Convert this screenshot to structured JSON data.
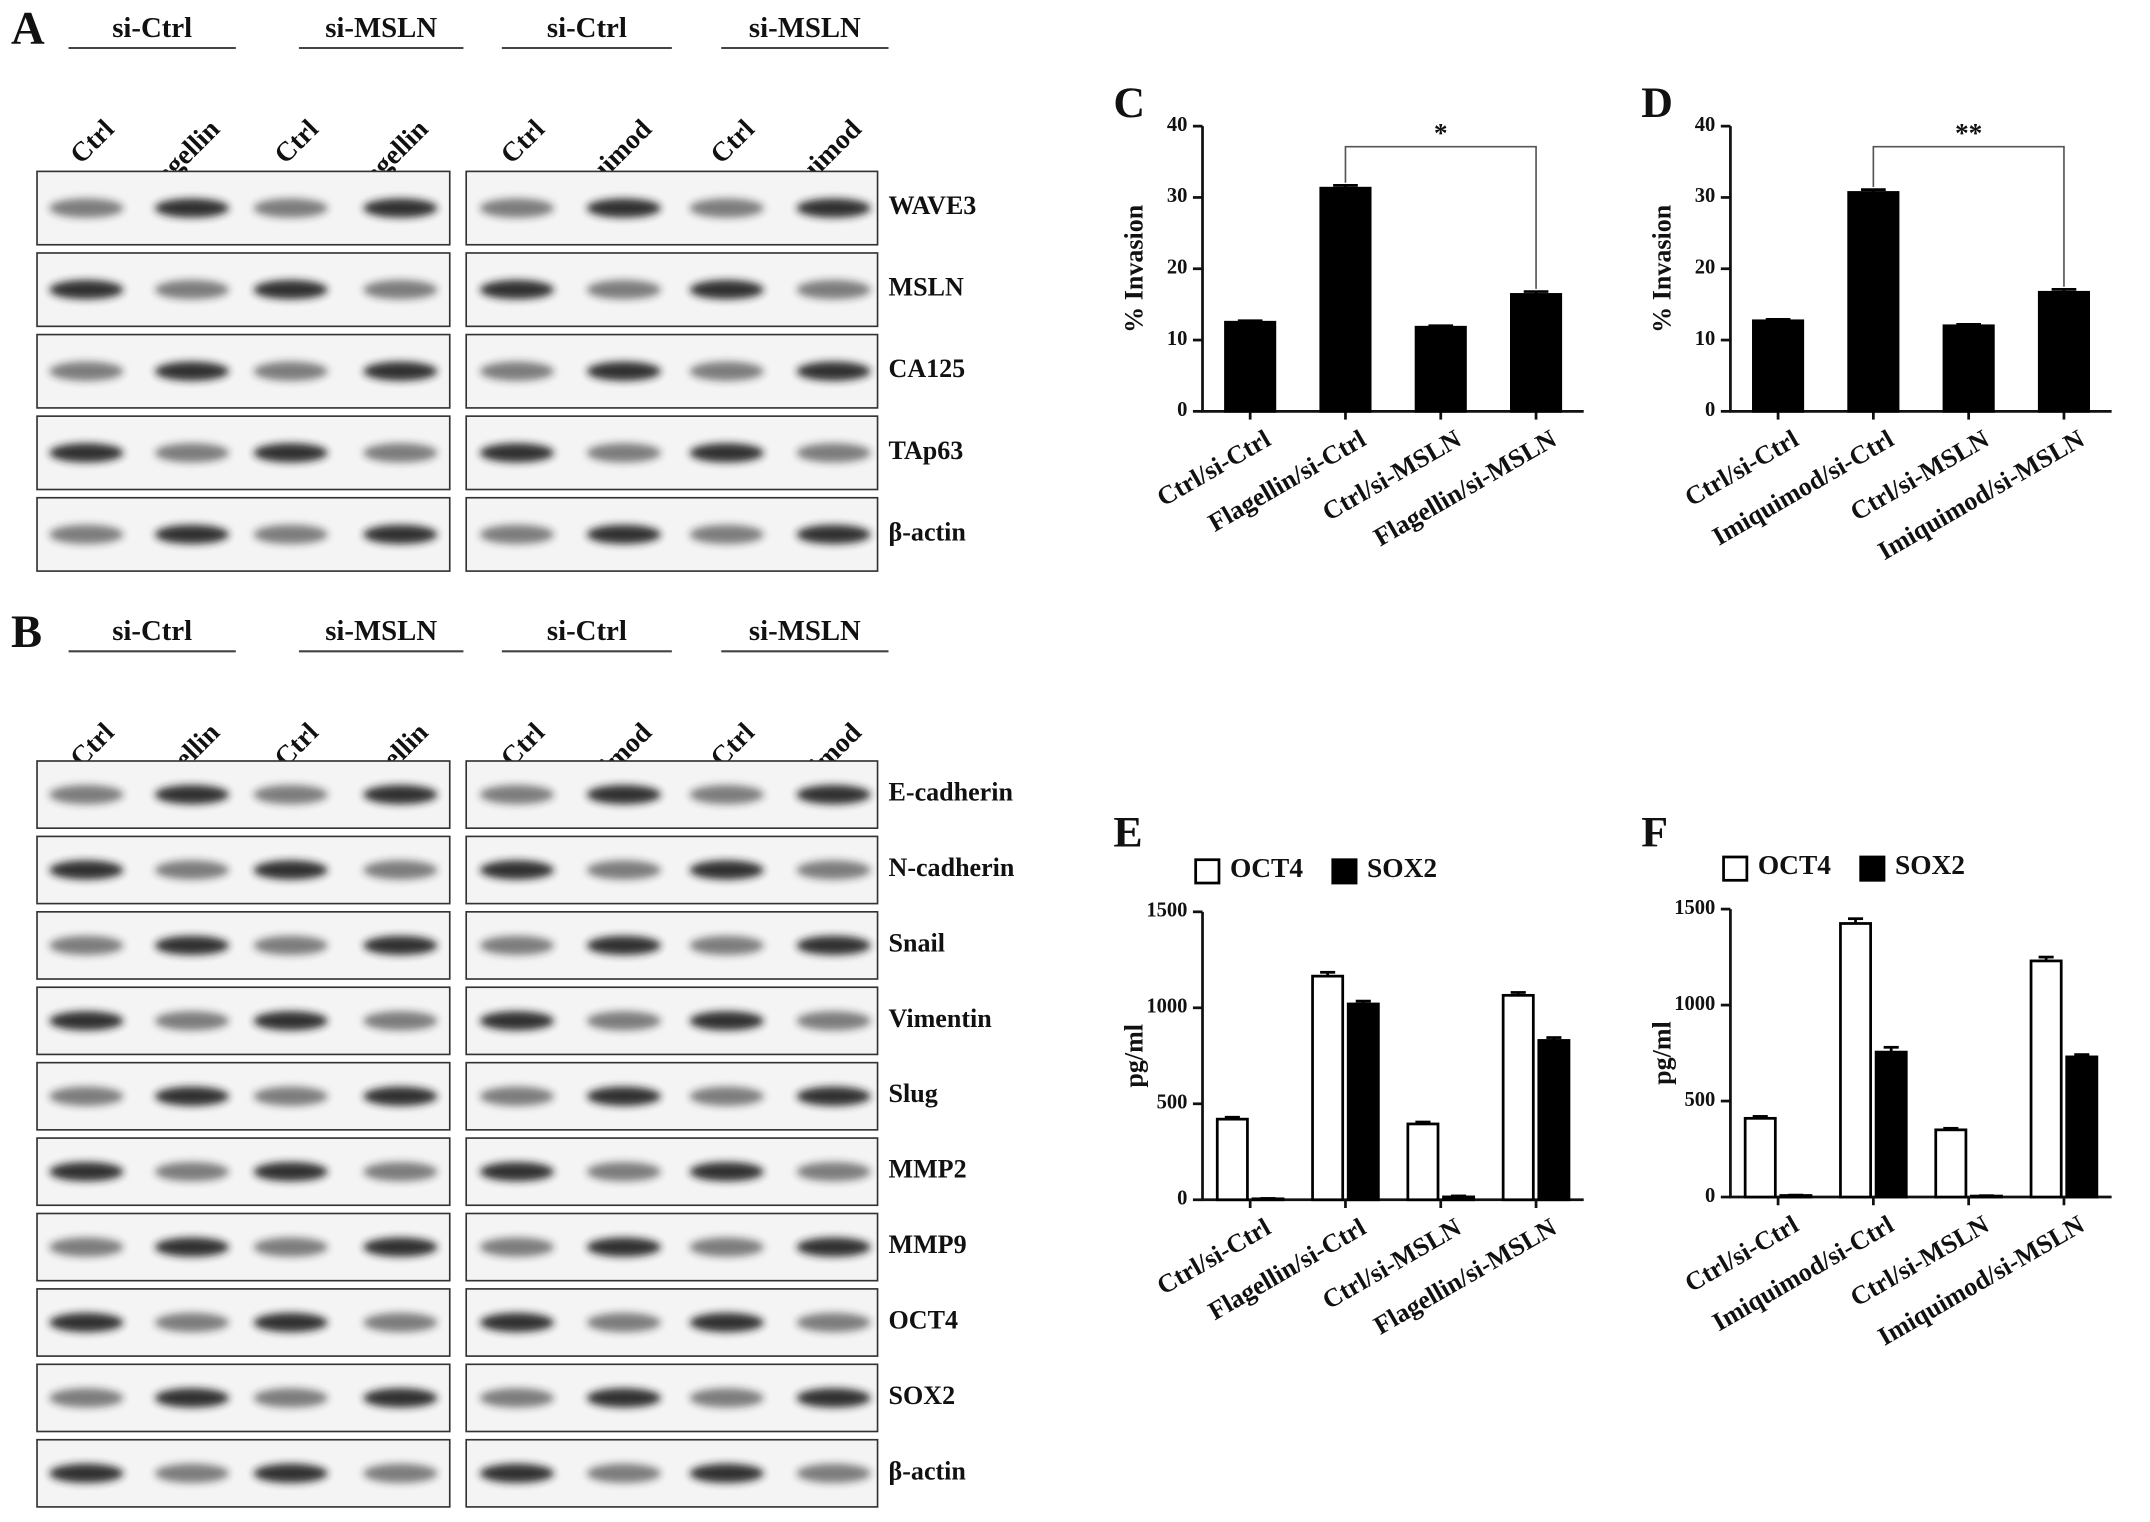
{
  "panel_a": {
    "letter": "A",
    "groups": [
      "si-Ctrl",
      "si-MSLN",
      "si-Ctrl",
      "si-MSLN"
    ],
    "lanes_left": [
      "Ctrl",
      "Flagellin",
      "Ctrl",
      "Flagellin"
    ],
    "lanes_right": [
      "Ctrl",
      "Imiquimod",
      "Ctrl",
      "Imiquimod"
    ],
    "proteins": [
      "WAVE3",
      "MSLN",
      "CA125",
      "TAp63",
      "β-actin"
    ]
  },
  "panel_b": {
    "letter": "B",
    "groups": [
      "si-Ctrl",
      "si-MSLN",
      "si-Ctrl",
      "si-MSLN"
    ],
    "lanes_left": [
      "Ctrl",
      "Flagellin",
      "Ctrl",
      "Flagellin"
    ],
    "lanes_right": [
      "Ctrl",
      "Imiquimod",
      "Ctrl",
      "Imiquimod"
    ],
    "proteins": [
      "E-cadherin",
      "N-cadherin",
      "Snail",
      "Vimentin",
      "Slug",
      "MMP2",
      "MMP9",
      "OCT4",
      "SOX2",
      "β-actin"
    ]
  },
  "chart_data": [
    {
      "type": "bar",
      "letter": "C",
      "y_label": "% Invasion",
      "color": "#000000",
      "categories": [
        "Ctrl/si-Ctrl",
        "Flagellin/si-Ctrl",
        "Ctrl/si-MSLN",
        "Flagellin/si-MSLN"
      ],
      "values": [
        12.5,
        31.3,
        11.8,
        16.4
      ],
      "errors": [
        0.2,
        0.4,
        0.2,
        0.4
      ],
      "ylim": [
        0,
        40
      ],
      "yticks": [
        0,
        10,
        20,
        30,
        40
      ],
      "annotation": "*"
    },
    {
      "type": "bar",
      "letter": "D",
      "y_label": "% Invasion",
      "color": "#000000",
      "categories": [
        "Ctrl/si-Ctrl",
        "Imiquimod/si-Ctrl",
        "Ctrl/si-MSLN",
        "Imiquimod/si-MSLN"
      ],
      "values": [
        12.7,
        30.7,
        12.0,
        16.7
      ],
      "errors": [
        0.2,
        0.4,
        0.2,
        0.4
      ],
      "ylim": [
        0,
        40
      ],
      "yticks": [
        0,
        10,
        20,
        30,
        40
      ],
      "annotation": "**"
    },
    {
      "type": "bar",
      "letter": "E",
      "y_label": "pg/ml",
      "categories": [
        "Ctrl/si-Ctrl",
        "Flagellin/si-Ctrl",
        "Ctrl/si-MSLN",
        "Flagellin/si-MSLN"
      ],
      "series": [
        {
          "name": "OCT4",
          "color": "#ffffff",
          "values": [
            420,
            1165,
            395,
            1065
          ],
          "errors": [
            10,
            20,
            10,
            15
          ]
        },
        {
          "name": "SOX2",
          "color": "#000000",
          "values": [
            5,
            1020,
            15,
            830
          ],
          "errors": [
            2,
            15,
            5,
            15
          ]
        }
      ],
      "ylim": [
        0,
        1500
      ],
      "yticks": [
        0,
        500,
        1000,
        1500
      ]
    },
    {
      "type": "bar",
      "letter": "F",
      "y_label": "pg/ml",
      "categories": [
        "Ctrl/si-Ctrl",
        "Imiquimod/si-Ctrl",
        "Ctrl/si-MSLN",
        "Imiquimod/si-MSLN"
      ],
      "series": [
        {
          "name": "OCT4",
          "color": "#ffffff",
          "values": [
            410,
            1425,
            350,
            1230
          ],
          "errors": [
            10,
            25,
            8,
            20
          ]
        },
        {
          "name": "SOX2",
          "color": "#000000",
          "values": [
            8,
            755,
            5,
            730
          ],
          "errors": [
            2,
            25,
            2,
            12
          ]
        }
      ],
      "ylim": [
        0,
        1500
      ],
      "yticks": [
        0,
        500,
        1000,
        1500
      ]
    }
  ]
}
